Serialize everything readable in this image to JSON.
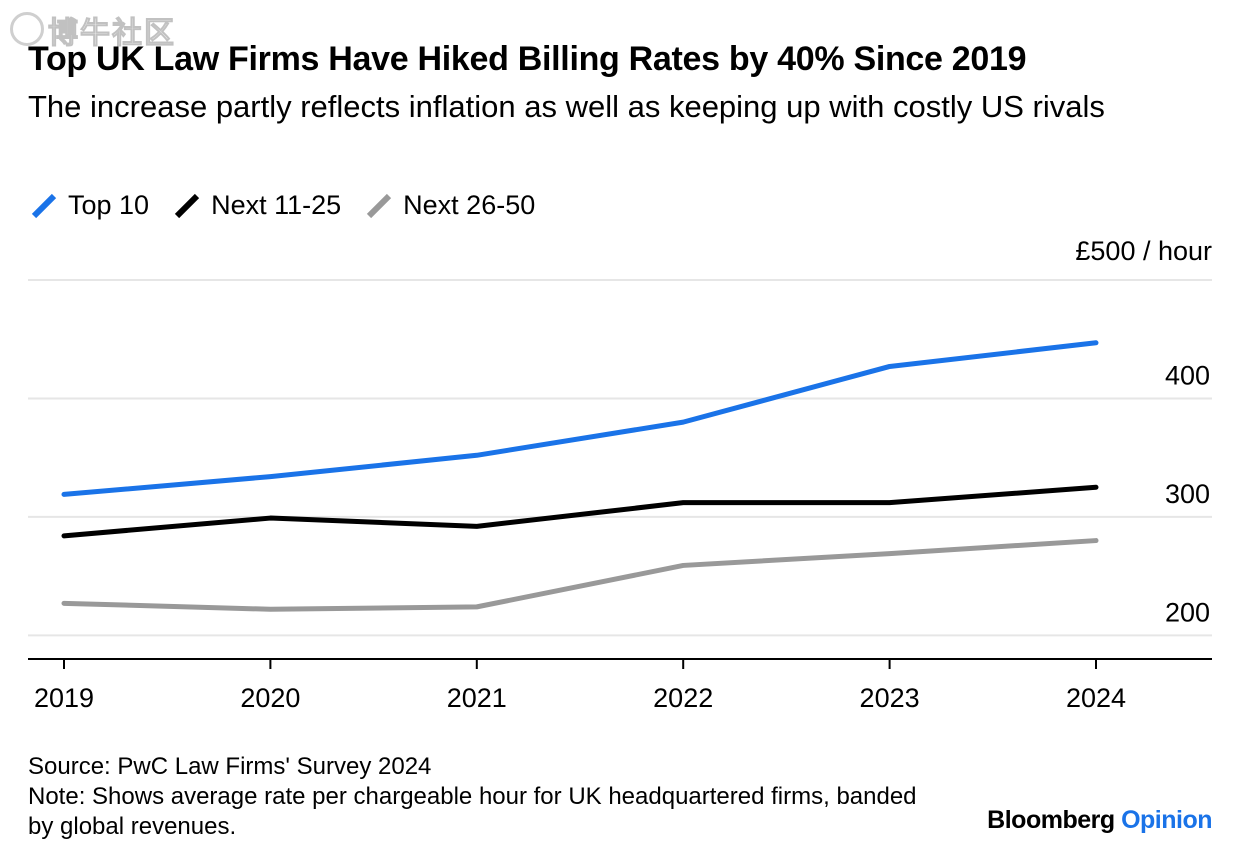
{
  "watermark": {
    "text": "博牛社区"
  },
  "chart_data": {
    "type": "line",
    "title": "Top UK Law Firms Have Hiked Billing Rates by 40% Since 2019",
    "subtitle": "The increase partly reflects inflation as well as keeping up with costly US rivals",
    "categories": [
      "2019",
      "2020",
      "2021",
      "2022",
      "2023",
      "2024"
    ],
    "series": [
      {
        "name": "Top 10",
        "color": "#1a73e8",
        "values": [
          319,
          334,
          352,
          380,
          427,
          447
        ]
      },
      {
        "name": "Next 11-25",
        "color": "#000000",
        "values": [
          284,
          299,
          292,
          312,
          312,
          325
        ]
      },
      {
        "name": "Next 26-50",
        "color": "#999999",
        "values": [
          227,
          222,
          224,
          259,
          269,
          280
        ]
      }
    ],
    "y_unit_label": "£500 / hour",
    "y_ticks": [
      200,
      300,
      400,
      500
    ],
    "y_tick_labels": [
      "200",
      "300",
      "400"
    ],
    "ylim": [
      180,
      500
    ],
    "legend_position": "top-left",
    "grid": true
  },
  "footer": {
    "source": "Source: PwC Law Firms' Survey 2024",
    "note": "Note: Shows average rate per chargeable hour for UK headquartered firms, banded by global revenues.",
    "brand_main": "Bloomberg",
    "brand_accent": "Opinion"
  }
}
